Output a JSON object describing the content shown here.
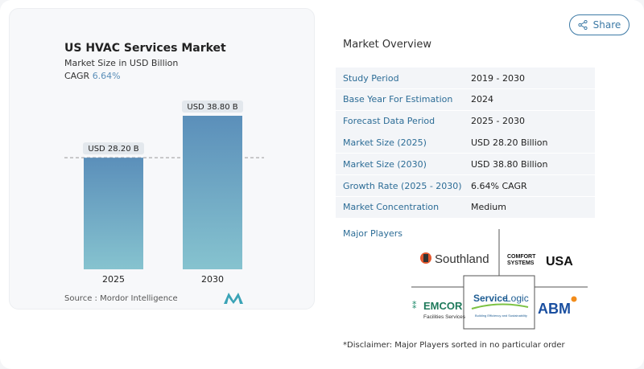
{
  "header": {
    "share_label": "Share",
    "share_icon": "share-icon"
  },
  "chart_card": {
    "title": "US HVAC Services Market",
    "subtitle": "Market Size in USD Billion",
    "cagr_label": "CAGR",
    "cagr_value": "6.64%",
    "source": "Source :  Mordor Intelligence",
    "bar_color": "#5f95bd"
  },
  "chart_data": {
    "type": "bar",
    "categories": [
      "2025",
      "2030"
    ],
    "values": [
      28.2,
      38.8
    ],
    "data_labels": [
      "USD 28.20 B",
      "USD 38.80 B"
    ],
    "title": "US HVAC Services Market",
    "ylabel": "Market Size in USD Billion",
    "reference_line": 28.2,
    "grid": false
  },
  "overview": {
    "title": "Market Overview",
    "rows": [
      {
        "k": "Study Period",
        "v": "2019 - 2030"
      },
      {
        "k": "Base Year For Estimation",
        "v": "2024"
      },
      {
        "k": "Forecast Data Period",
        "v": "2025 - 2030"
      },
      {
        "k": "Market Size (2025)",
        "v": "USD 28.20 Billion"
      },
      {
        "k": "Market Size (2030)",
        "v": "USD 38.80 Billion"
      },
      {
        "k": "Growth Rate (2025 - 2030)",
        "v": "6.64% CAGR"
      },
      {
        "k": "Market Concentration",
        "v": "Medium"
      }
    ]
  },
  "players": {
    "title": "Major Players",
    "logos": [
      "Southland",
      "COMFORT SYSTEMS USA",
      "EMCOR Facilities Services",
      "Service Logic",
      "ABM"
    ],
    "southland": "Southland",
    "comfort1": "COMFORT",
    "comfort2": "SYSTEMS",
    "comfort3": "USA",
    "emcor": "EMCOR",
    "emcor_sub": "Facilities Services",
    "sl1": "Service",
    "sl2": "Logic",
    "sl_tag": "Building Efficiency and Sustainability",
    "abm": "ABM"
  },
  "disclaimer": "*Disclaimer: Major Players sorted in no particular order"
}
